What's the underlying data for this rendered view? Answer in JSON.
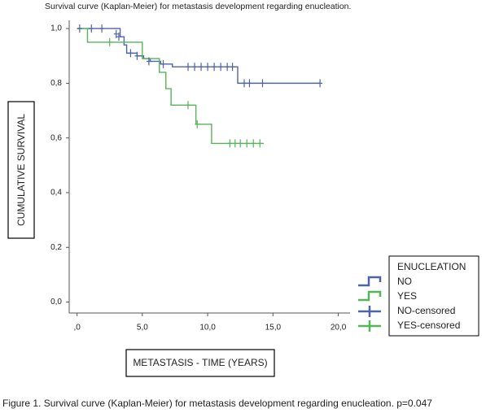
{
  "chart_data": {
    "type": "line",
    "title": "Survival curve (Kaplan-Meier) for metastasis development regarding enucleation.",
    "x_label": "METASTASIS - TIME (YEARS)",
    "y_label": "CUMULATIVE SURVIVAL",
    "legend_title": "ENUCLEATION",
    "caption": "Figure 1. Survival curve (Kaplan-Meier) for metastasis development regarding enucleation. p=0.047",
    "xlim": [
      -0.6,
      20.9
    ],
    "ylim": [
      -0.04,
      1.03
    ],
    "xticks": [
      {
        "value": 0,
        "label": ",0"
      },
      {
        "value": 5,
        "label": "5,0"
      },
      {
        "value": 10,
        "label": "10,0"
      },
      {
        "value": 15,
        "label": "15,0"
      },
      {
        "value": 20,
        "label": "20,0"
      }
    ],
    "yticks": [
      {
        "value": 0,
        "label": "0,0"
      },
      {
        "value": 0.2,
        "label": "0,2"
      },
      {
        "value": 0.4,
        "label": "0,4"
      },
      {
        "value": 0.6,
        "label": "0,6"
      },
      {
        "value": 0.8,
        "label": "0,8"
      },
      {
        "value": 1,
        "label": "1,0"
      }
    ],
    "series": [
      {
        "name": "NO",
        "color": "#4f63a8",
        "drawstyle": "steps-post",
        "x": [
          0,
          3.3,
          3.6,
          3.8,
          4.6,
          5.1,
          5.6,
          6.4,
          7.3,
          12.3,
          18.6
        ],
        "values": [
          1.0,
          0.97,
          0.94,
          0.91,
          0.9,
          0.89,
          0.88,
          0.87,
          0.86,
          0.8,
          0.8
        ]
      },
      {
        "name": "YES",
        "color": "#55b559",
        "drawstyle": "steps-post",
        "x": [
          0,
          0.8,
          5.0,
          6.3,
          6.8,
          7.2,
          9.1,
          10.3,
          14.3
        ],
        "values": [
          1.0,
          0.95,
          0.89,
          0.84,
          0.78,
          0.72,
          0.65,
          0.58,
          0.58
        ]
      },
      {
        "name": "NO-censored",
        "color": "#4f63a8",
        "marker": "+",
        "x": [
          0.2,
          1.1,
          1.9,
          3.0,
          3.2,
          4.1,
          4.6,
          5.5,
          6.6,
          8.5,
          9.0,
          9.5,
          10.0,
          10.5,
          11.0,
          11.5,
          11.9,
          12.8,
          13.2,
          14.2,
          18.6
        ],
        "values": [
          1.0,
          1.0,
          1.0,
          0.98,
          0.97,
          0.91,
          0.9,
          0.88,
          0.87,
          0.86,
          0.86,
          0.86,
          0.86,
          0.86,
          0.86,
          0.86,
          0.86,
          0.8,
          0.8,
          0.8,
          0.8
        ]
      },
      {
        "name": "YES-censored",
        "color": "#55b559",
        "marker": "+",
        "x": [
          2.5,
          8.5,
          9.2,
          11.7,
          12.1,
          12.5,
          13.0,
          13.5,
          14.0
        ],
        "values": [
          0.95,
          0.72,
          0.65,
          0.58,
          0.58,
          0.58,
          0.58,
          0.58,
          0.58
        ]
      }
    ]
  }
}
